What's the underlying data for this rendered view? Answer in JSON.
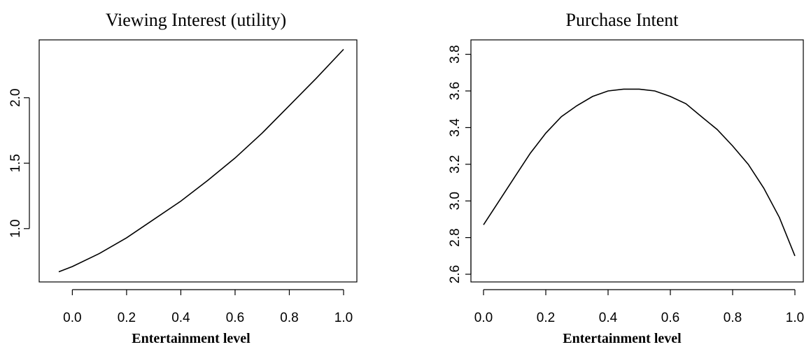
{
  "chart_data": [
    {
      "type": "line",
      "title": "Viewing Interest (utility)",
      "xlabel": "Entertainment level",
      "ylabel": "",
      "xlim": [
        -0.05,
        1.0
      ],
      "ylim": [
        0.67,
        2.37
      ],
      "xticks": [
        0.0,
        0.2,
        0.4,
        0.6,
        0.8,
        1.0
      ],
      "yticks": [
        1.0,
        1.5,
        2.0
      ],
      "xtick_labels": [
        "0.0",
        "0.2",
        "0.4",
        "0.6",
        "0.8",
        "1.0"
      ],
      "ytick_labels": [
        "1.0",
        "1.5",
        "2.0"
      ],
      "grid": false,
      "series": [
        {
          "x": [
            -0.05,
            0.0,
            0.1,
            0.2,
            0.3,
            0.4,
            0.5,
            0.6,
            0.7,
            0.8,
            0.9,
            1.0
          ],
          "y": [
            0.67,
            0.71,
            0.81,
            0.93,
            1.07,
            1.21,
            1.37,
            1.54,
            1.73,
            1.94,
            2.15,
            2.37
          ]
        }
      ]
    },
    {
      "type": "line",
      "title": "Purchase Intent",
      "xlabel": "Entertainment level",
      "ylabel": "",
      "xlim": [
        0.0,
        1.0
      ],
      "ylim": [
        2.6,
        3.85
      ],
      "xticks": [
        0.0,
        0.2,
        0.4,
        0.6,
        0.8,
        1.0
      ],
      "yticks": [
        2.6,
        2.8,
        3.0,
        3.2,
        3.4,
        3.6,
        3.8
      ],
      "xtick_labels": [
        "0.0",
        "0.2",
        "0.4",
        "0.6",
        "0.8",
        "1.0"
      ],
      "ytick_labels": [
        "2.6",
        "2.8",
        "3.0",
        "3.2",
        "3.4",
        "3.6",
        "3.8"
      ],
      "grid": false,
      "series": [
        {
          "x": [
            0.0,
            0.05,
            0.1,
            0.15,
            0.2,
            0.25,
            0.3,
            0.35,
            0.4,
            0.45,
            0.5,
            0.55,
            0.6,
            0.65,
            0.7,
            0.75,
            0.8,
            0.85,
            0.9,
            0.95,
            1.0
          ],
          "y": [
            2.87,
            3.0,
            3.13,
            3.26,
            3.37,
            3.46,
            3.52,
            3.57,
            3.6,
            3.61,
            3.61,
            3.6,
            3.57,
            3.53,
            3.46,
            3.39,
            3.3,
            3.2,
            3.07,
            2.91,
            2.7
          ]
        }
      ]
    }
  ]
}
